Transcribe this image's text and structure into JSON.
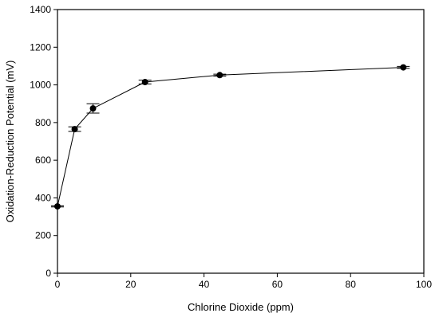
{
  "chart_data": {
    "type": "line",
    "title": "",
    "xlabel": "Chlorine Dioxide (ppm)",
    "ylabel": "Oxidation-Reduction Potential (mV)",
    "xlim": [
      0,
      100
    ],
    "ylim": [
      0,
      1400
    ],
    "x_ticks": [
      0,
      20,
      40,
      60,
      80,
      100
    ],
    "y_ticks": [
      0,
      200,
      400,
      600,
      800,
      1000,
      1200,
      1400
    ],
    "grid": false,
    "legend": "none",
    "series": [
      {
        "x": [
          0,
          4.7,
          9.7,
          23.9,
          44.3,
          94.4
        ],
        "y": [
          355,
          765,
          875,
          1015,
          1052,
          1093
        ],
        "error": [
          3,
          12,
          25,
          10,
          5,
          5
        ]
      }
    ],
    "colors": {
      "line": "#000000",
      "marker": "#000000",
      "frame": "#000000"
    }
  }
}
